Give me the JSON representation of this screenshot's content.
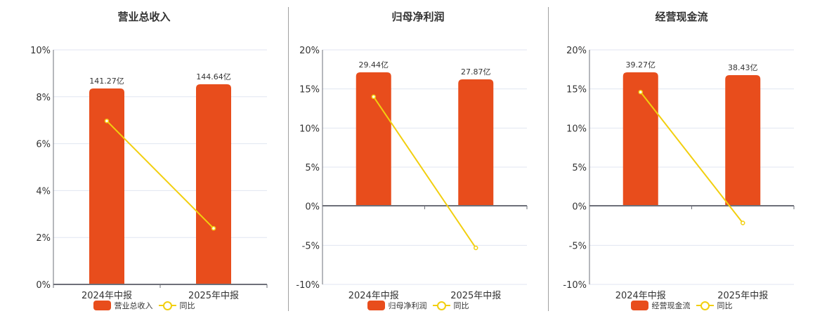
{
  "colors": {
    "bar": "#E84D1C",
    "line": "#F2CF0F",
    "grid": "#E0E6F1",
    "axis": "#6E7079",
    "divider": "#A0A0A0"
  },
  "legend_line_label": "同比",
  "chart_data": [
    {
      "type": "bar+line",
      "title": "营业总收入",
      "categories": [
        "2024年中报",
        "2025年中报"
      ],
      "bar_series": {
        "name": "营业总收入",
        "values": [
          141.27,
          144.64
        ],
        "labels": [
          "141.27亿",
          "144.64亿"
        ],
        "unit": "亿"
      },
      "line_series": {
        "name": "同比",
        "values": [
          6.97,
          2.39
        ],
        "unit": "%"
      },
      "yaxis": {
        "ticks": [
          "10%",
          "8%",
          "6%",
          "4%",
          "2%",
          "0%"
        ],
        "min": 0,
        "max": 10
      },
      "grid": true,
      "legend_position": "bottom"
    },
    {
      "type": "bar+line",
      "title": "归母净利润",
      "categories": [
        "2024年中报",
        "2025年中报"
      ],
      "bar_series": {
        "name": "归母净利润",
        "values": [
          29.44,
          27.87
        ],
        "labels": [
          "29.44亿",
          "27.87亿"
        ],
        "unit": "亿"
      },
      "line_series": {
        "name": "同比",
        "values": [
          14.0,
          -5.33
        ],
        "unit": "%"
      },
      "yaxis": {
        "ticks": [
          "20%",
          "15%",
          "10%",
          "5%",
          "0%",
          "-5%",
          "-10%"
        ],
        "min": -10,
        "max": 20
      },
      "grid": true,
      "legend_position": "bottom"
    },
    {
      "type": "bar+line",
      "title": "经营现金流",
      "categories": [
        "2024年中报",
        "2025年中报"
      ],
      "bar_series": {
        "name": "经营现金流",
        "values": [
          39.27,
          38.43
        ],
        "labels": [
          "39.27亿",
          "38.43亿"
        ],
        "unit": "亿"
      },
      "line_series": {
        "name": "同比",
        "values": [
          14.6,
          -2.14
        ],
        "unit": "%"
      },
      "yaxis": {
        "ticks": [
          "20%",
          "15%",
          "10%",
          "5%",
          "0%",
          "-5%",
          "-10%"
        ],
        "min": -10,
        "max": 20
      },
      "grid": true,
      "legend_position": "bottom"
    }
  ]
}
